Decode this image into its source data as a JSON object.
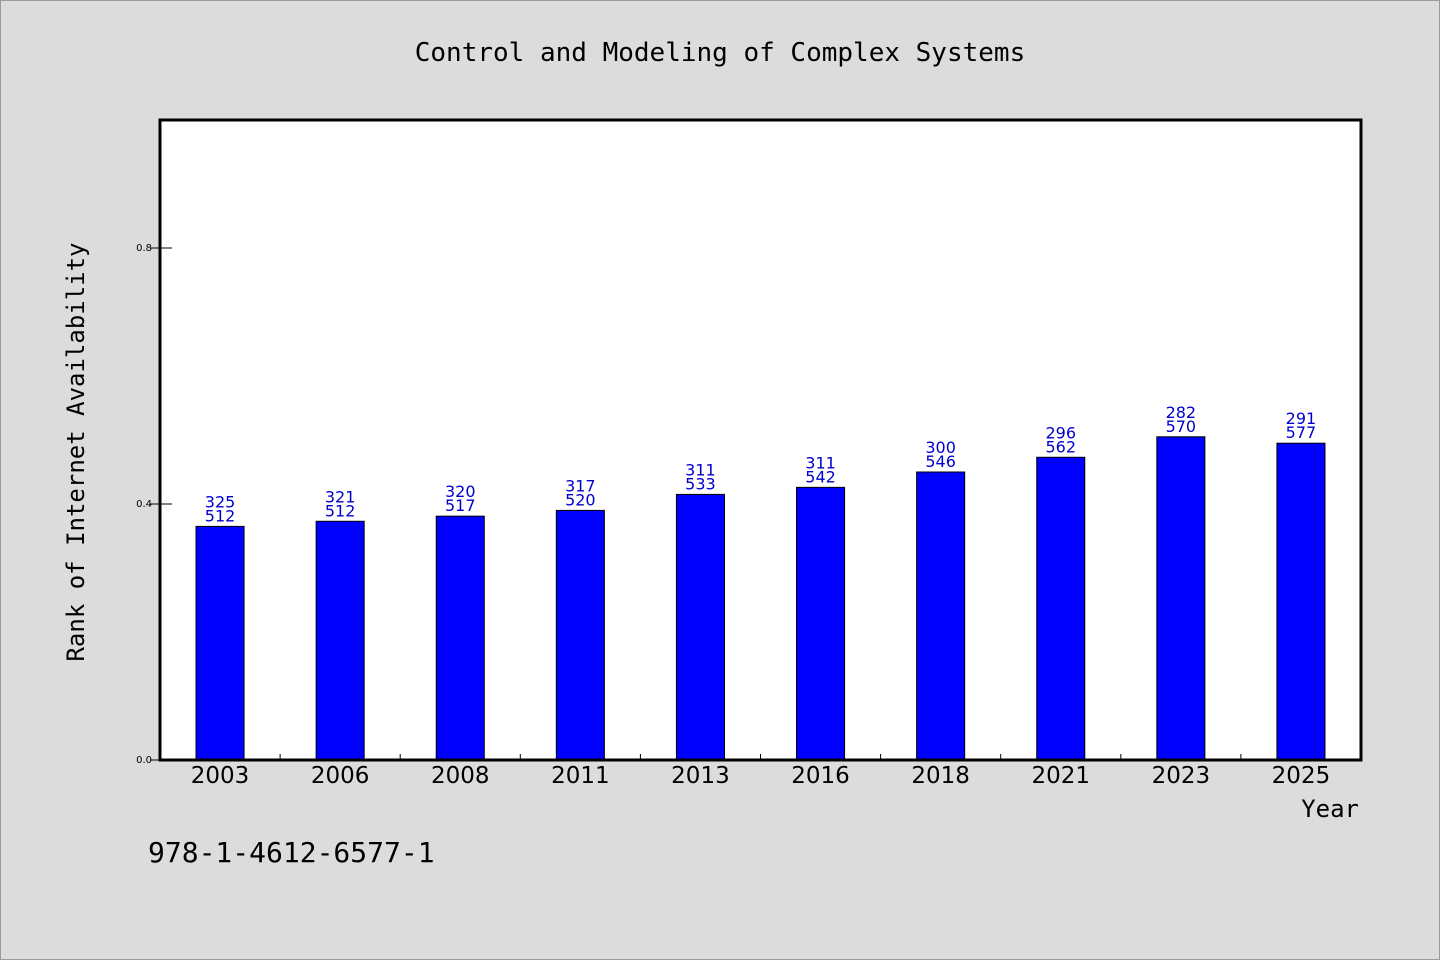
{
  "chart_data": {
    "type": "bar",
    "title": "Control and Modeling of Complex Systems",
    "xlabel": "Year",
    "ylabel": "Rank of Internet Availability",
    "categories": [
      "2003",
      "2006",
      "2008",
      "2011",
      "2013",
      "2016",
      "2018",
      "2021",
      "2023",
      "2025"
    ],
    "values": [
      0.365,
      0.373,
      0.381,
      0.39,
      0.415,
      0.426,
      0.45,
      0.473,
      0.505,
      0.495
    ],
    "data_labels": [
      [
        "325",
        "512"
      ],
      [
        "321",
        "512"
      ],
      [
        "320",
        "517"
      ],
      [
        "317",
        "520"
      ],
      [
        "311",
        "533"
      ],
      [
        "311",
        "542"
      ],
      [
        "300",
        "546"
      ],
      [
        "296",
        "562"
      ],
      [
        "282",
        "570"
      ],
      [
        "291",
        "577"
      ]
    ],
    "ylim": [
      0,
      1
    ],
    "yticks": [
      0.0,
      0.4,
      0.8
    ],
    "ytick_labels": [
      "0.0",
      "0.4",
      "0.8"
    ],
    "grid": false,
    "colors": {
      "bar": "#0000ff",
      "data_label": "#0000cc",
      "background": "#dcdcdc",
      "plot_background": "#ffffff"
    }
  },
  "footer": {
    "isbn": "978-1-4612-6577-1"
  }
}
